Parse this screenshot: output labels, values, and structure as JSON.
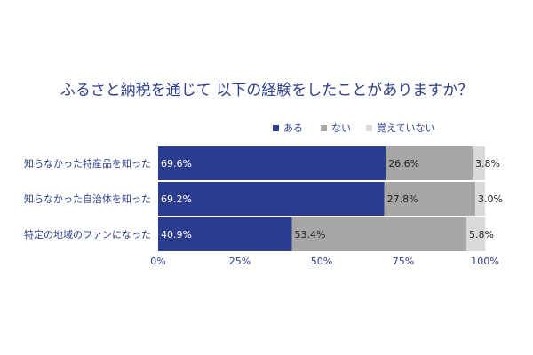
{
  "chart_data": {
    "type": "bar",
    "orientation": "horizontal",
    "stacked": true,
    "title": "ふるさと納税を通じて 以下の経験をしたことがありますか？",
    "categories": [
      "知らなかった特産品を知った",
      "知らなかった自治体を知った",
      "特定の地域のファンになった"
    ],
    "series": [
      {
        "name": "ある",
        "color": "#2b3d8f",
        "label_color": "#ffffff",
        "values": [
          69.6,
          69.2,
          40.9
        ],
        "labels": [
          "69.6%",
          "69.2%",
          "40.9%"
        ]
      },
      {
        "name": "ない",
        "color": "#a6a6a6",
        "label_color": "#222222",
        "values": [
          26.6,
          27.8,
          53.4
        ],
        "labels": [
          "26.6%",
          "27.8%",
          "53.4%"
        ]
      },
      {
        "name": "覚えていない",
        "color": "#d9d9d9",
        "label_color": "#222222",
        "values": [
          3.8,
          3.0,
          5.8
        ],
        "labels": [
          "3.8%",
          "3.0%",
          "5.8%"
        ]
      }
    ],
    "xlim": [
      0,
      100
    ],
    "x_ticks": [
      0,
      25,
      50,
      75,
      100
    ],
    "x_tick_labels": [
      "0%",
      "25%",
      "50%",
      "75%",
      "100%"
    ],
    "legend_position": "top",
    "grid": false
  }
}
